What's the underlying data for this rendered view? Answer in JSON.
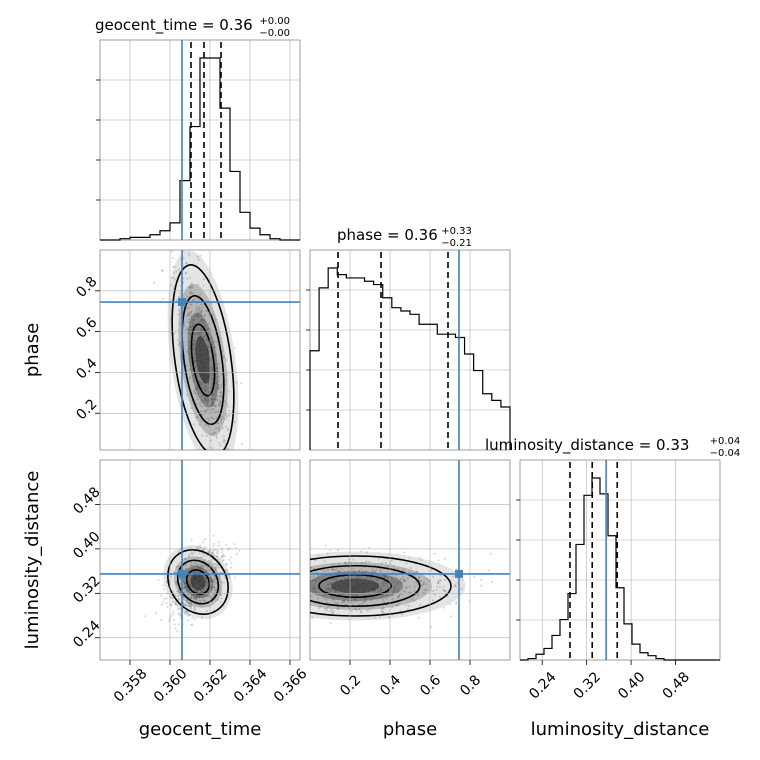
{
  "chart_data": {
    "type": "corner",
    "parameters": [
      "geocent_time",
      "phase",
      "luminosity_distance"
    ],
    "truths": {
      "geocent_time": 0.3606,
      "phase": 0.745,
      "luminosity_distance": 0.355
    },
    "colors": {
      "truth": "#4682b4",
      "line": "#000000",
      "grid": "#b0b0b0"
    },
    "grid": true,
    "marginals": [
      {
        "param": "geocent_time",
        "title": "geocent_time = 0.36",
        "sup": "+0.00",
        "sub": "−0.00",
        "range": [
          0.3565,
          0.3665
        ],
        "quantiles": [
          0.36105,
          0.3617,
          0.36255
        ],
        "bin_counts": [
          0,
          0,
          1,
          2,
          2,
          4,
          7,
          13,
          45,
          86,
          138,
          138,
          100,
          52,
          21,
          9,
          4,
          1,
          0,
          0
        ]
      },
      {
        "param": "phase",
        "title": "phase = 0.36",
        "sup": "+0.33",
        "sub": "−0.21",
        "range": [
          0.0,
          1.0
        ],
        "quantiles": [
          0.14,
          0.355,
          0.69
        ],
        "bin_counts": [
          60,
          98,
          110,
          106,
          104,
          104,
          102,
          100,
          92,
          86,
          84,
          82,
          76,
          76,
          70,
          70,
          68,
          58,
          48,
          34,
          30,
          26
        ]
      },
      {
        "param": "luminosity_distance",
        "title": "luminosity_distance = 0.33",
        "sup": "+0.04",
        "sub": "−0.04",
        "range": [
          0.2,
          0.56
        ],
        "quantiles": [
          0.29,
          0.33,
          0.375
        ],
        "bin_counts": [
          0,
          1,
          4,
          8,
          17,
          28,
          46,
          80,
          114,
          126,
          115,
          86,
          50,
          25,
          11,
          5,
          3,
          1,
          0,
          0,
          0,
          0,
          0,
          0,
          0
        ]
      }
    ],
    "pairs": [
      {
        "x": "geocent_time",
        "y": "phase",
        "ylim": [
          0.02,
          1.0
        ]
      },
      {
        "x": "geocent_time",
        "y": "luminosity_distance",
        "ylim": [
          0.2,
          0.56
        ]
      },
      {
        "x": "phase",
        "y": "luminosity_distance",
        "ylim": [
          0.2,
          0.56
        ]
      }
    ],
    "axis_labels": {
      "x": [
        "geocent_time",
        "phase",
        "luminosity_distance"
      ],
      "y": [
        "phase",
        "luminosity_distance"
      ]
    },
    "ticks": {
      "geocent_time": [
        "0.358",
        "0.360",
        "0.362",
        "0.364",
        "0.366"
      ],
      "phase": [
        "0.2",
        "0.4",
        "0.6",
        "0.8"
      ],
      "luminosity_distance": [
        "0.24",
        "0.32",
        "0.40",
        "0.48"
      ]
    }
  }
}
